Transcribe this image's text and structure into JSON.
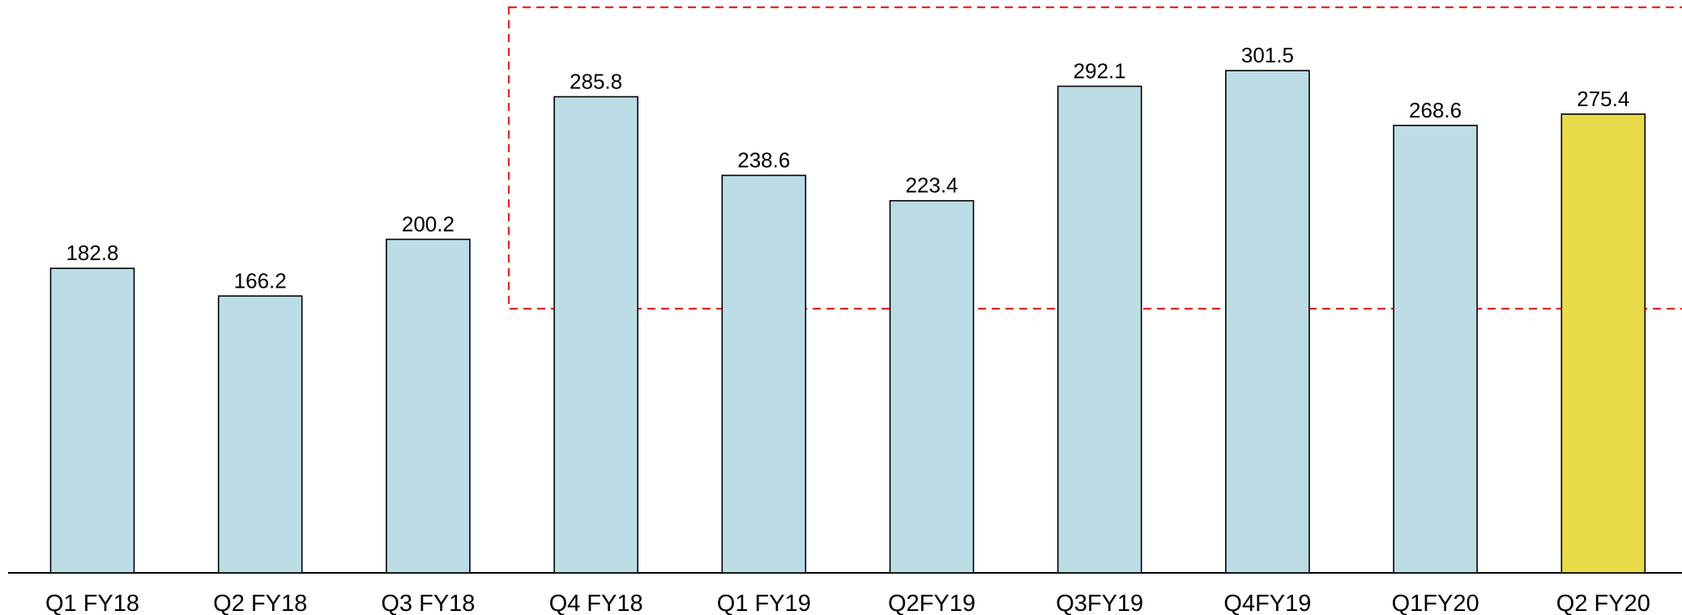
{
  "chart_data": {
    "type": "bar",
    "categories": [
      "Q1 FY18",
      "Q2 FY18",
      "Q3 FY18",
      "Q4 FY18",
      "Q1 FY19",
      "Q2FY19",
      "Q3FY19",
      "Q4FY19",
      "Q1FY20",
      "Q2 FY20"
    ],
    "values": [
      182.8,
      166.2,
      200.2,
      285.8,
      238.6,
      223.4,
      292.1,
      301.5,
      268.6,
      275.4
    ],
    "colors": [
      "#bcdde6",
      "#bcdde6",
      "#bcdde6",
      "#bcdde6",
      "#bcdde6",
      "#bcdde6",
      "#bcdde6",
      "#bcdde6",
      "#bcdde6",
      "#e8da48"
    ],
    "ylim": [
      0,
      340
    ]
  }
}
